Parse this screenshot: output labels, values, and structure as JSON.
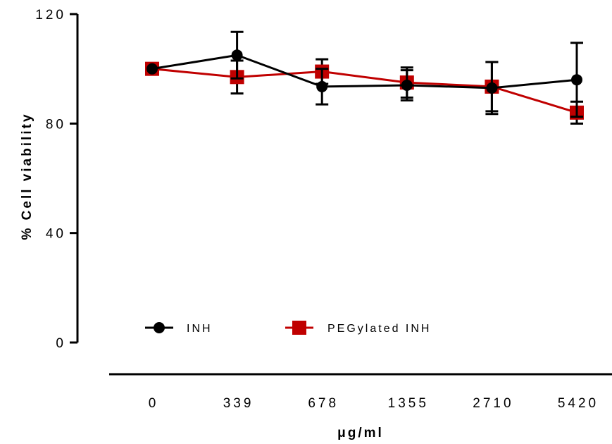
{
  "chart_data": {
    "type": "line",
    "title": "",
    "xlabel": "μg/ml",
    "ylabel": "% Cell viability",
    "categories": [
      "0",
      "339",
      "678",
      "1355",
      "2710",
      "5420"
    ],
    "ylim": [
      0,
      120
    ],
    "yticks": [
      0,
      40,
      80,
      120
    ],
    "grid": false,
    "legend_position": "bottom-left",
    "series": [
      {
        "name": "INH",
        "color": "#000000",
        "marker": "circle",
        "values": [
          100,
          105,
          93.5,
          94,
          93,
          96
        ],
        "errors": [
          0,
          8.5,
          6.5,
          5.5,
          9.5,
          13.5
        ]
      },
      {
        "name": "PEGylated INH",
        "color": "#c00000",
        "marker": "square",
        "values": [
          100,
          97,
          99,
          95,
          93.5,
          84
        ],
        "errors": [
          0,
          6,
          4.5,
          5.5,
          9,
          4
        ]
      }
    ]
  }
}
